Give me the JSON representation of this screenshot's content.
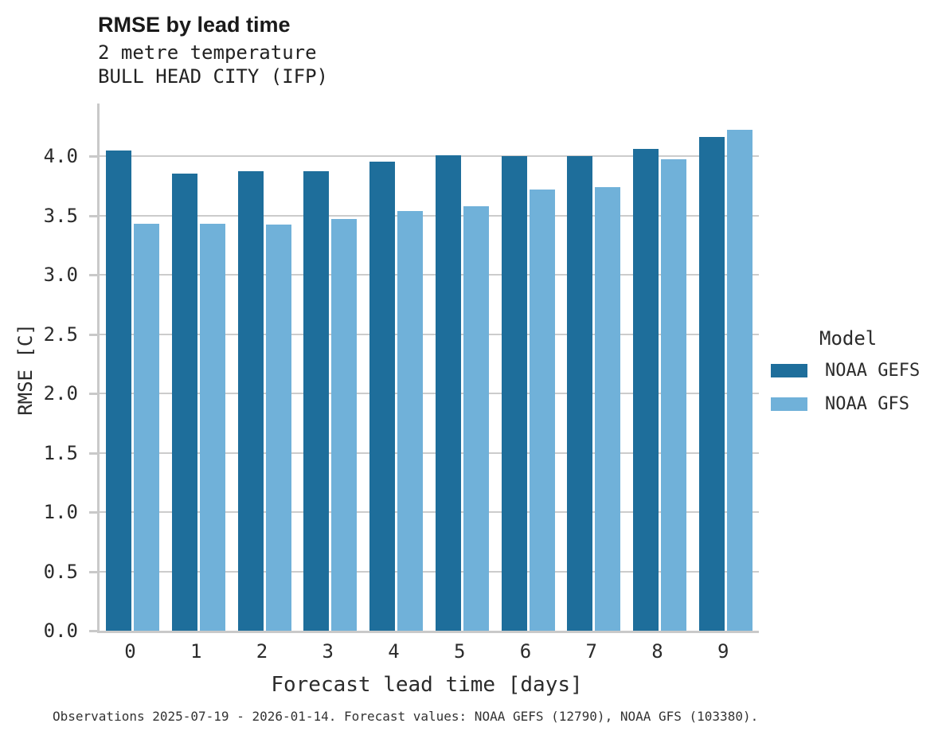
{
  "header": {
    "title": "RMSE by lead time",
    "subtitle_variable": "2 metre temperature",
    "subtitle_station": "BULL HEAD CITY (IFP)"
  },
  "chart_data": {
    "type": "bar",
    "title": "RMSE by lead time",
    "subtitle": [
      "2 metre temperature",
      "BULL HEAD CITY (IFP)"
    ],
    "xlabel": "Forecast lead time [days]",
    "ylabel": "RMSE [C]",
    "categories": [
      "0",
      "1",
      "2",
      "3",
      "4",
      "5",
      "6",
      "7",
      "8",
      "9"
    ],
    "series": [
      {
        "name": "NOAA GEFS",
        "color": "#1e6e9b",
        "values": [
          4.05,
          3.85,
          3.87,
          3.87,
          3.95,
          4.01,
          4.0,
          4.0,
          4.06,
          4.16
        ]
      },
      {
        "name": "NOAA GFS",
        "color": "#70b1d9",
        "values": [
          3.43,
          3.43,
          3.42,
          3.47,
          3.54,
          3.58,
          3.72,
          3.74,
          3.97,
          4.22
        ]
      }
    ],
    "ylim": [
      0.0,
      4.44
    ],
    "yticks": [
      0.0,
      0.5,
      1.0,
      1.5,
      2.0,
      2.5,
      3.0,
      3.5,
      4.0
    ],
    "grid": true,
    "legend_title": "Model",
    "legend_position": "right"
  },
  "legend": {
    "title": "Model",
    "items": [
      {
        "label": "NOAA GEFS",
        "color": "#1e6e9b"
      },
      {
        "label": "NOAA GFS",
        "color": "#70b1d9"
      }
    ]
  },
  "footer": {
    "note": "Observations 2025-07-19 - 2026-01-14. Forecast values: NOAA GEFS (12790), NOAA GFS (103380)."
  },
  "colors": {
    "gefs": "#1e6e9b",
    "gfs": "#70b1d9",
    "gridline": "#cccccc",
    "axis_spine": "#c9c9c9",
    "text": "#2b2b2b",
    "background": "#ffffff"
  }
}
